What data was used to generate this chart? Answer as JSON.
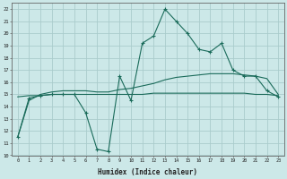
{
  "xlabel": "Humidex (Indice chaleur)",
  "background_color": "#cce8e8",
  "grid_color": "#aacccc",
  "line_color": "#1a6b5a",
  "xmin": -0.5,
  "xmax": 23.5,
  "ymin": 10,
  "ymax": 22.5,
  "hours": [
    0,
    1,
    2,
    3,
    4,
    5,
    6,
    7,
    8,
    9,
    10,
    11,
    12,
    13,
    14,
    15,
    16,
    17,
    18,
    19,
    20,
    21,
    22,
    23
  ],
  "main_line": [
    11.5,
    14.7,
    14.9,
    15.0,
    15.0,
    15.0,
    13.5,
    10.5,
    10.3,
    16.5,
    14.5,
    19.2,
    19.8,
    22.0,
    21.0,
    20.0,
    18.7,
    18.5,
    19.2,
    17.0,
    16.5,
    16.5,
    15.3,
    14.8
  ],
  "smooth_line": [
    11.5,
    14.5,
    15.0,
    15.2,
    15.3,
    15.3,
    15.3,
    15.2,
    15.2,
    15.4,
    15.5,
    15.7,
    15.9,
    16.2,
    16.4,
    16.5,
    16.6,
    16.7,
    16.7,
    16.7,
    16.6,
    16.5,
    16.3,
    15.0
  ],
  "flat_line": [
    14.8,
    14.9,
    14.9,
    15.0,
    15.0,
    15.0,
    15.0,
    15.0,
    15.0,
    15.0,
    15.0,
    15.0,
    15.1,
    15.1,
    15.1,
    15.1,
    15.1,
    15.1,
    15.1,
    15.1,
    15.1,
    15.0,
    15.0,
    14.9
  ],
  "yticks": [
    10,
    11,
    12,
    13,
    14,
    15,
    16,
    17,
    18,
    19,
    20,
    21,
    22
  ],
  "xticks": [
    0,
    1,
    2,
    3,
    4,
    5,
    6,
    7,
    8,
    9,
    10,
    11,
    12,
    13,
    14,
    15,
    16,
    17,
    18,
    19,
    20,
    21,
    22,
    23
  ]
}
